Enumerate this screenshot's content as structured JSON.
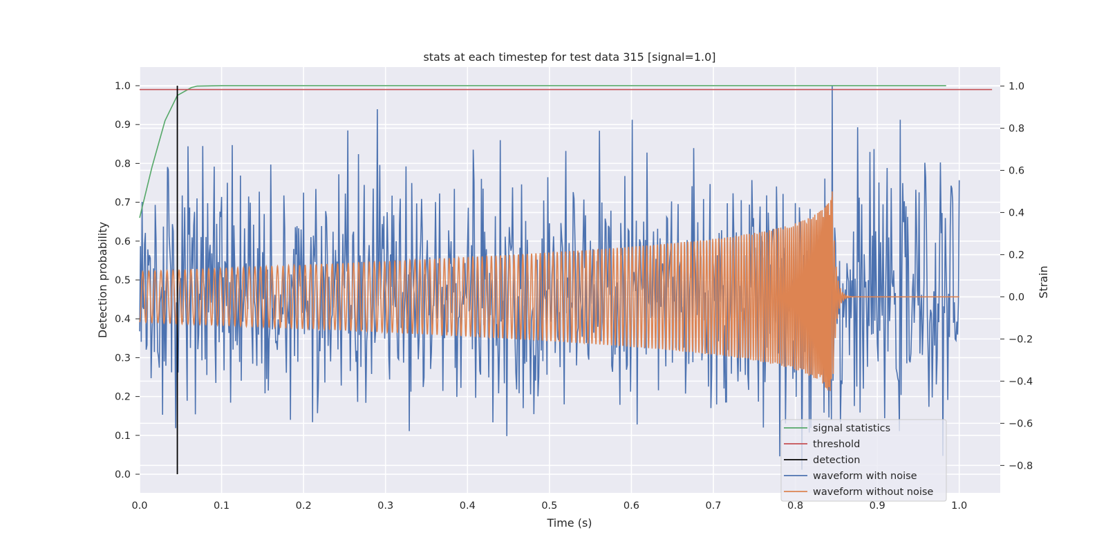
{
  "chart_data": {
    "type": "line",
    "title": "stats at each timestep for test data 315 [signal=1.0]",
    "xlabel": "Time (s)",
    "ylabel_left": "Detection probability",
    "ylabel_right": "Strain",
    "xlim": [
      0.0,
      1.05
    ],
    "ylim_left": [
      -0.048,
      1.048
    ],
    "ylim_right": [
      -0.93,
      1.09
    ],
    "x_ticks": [
      0.0,
      0.1,
      0.2,
      0.3,
      0.4,
      0.5,
      0.6,
      0.7,
      0.8,
      0.9,
      1.0
    ],
    "x_tick_labels": [
      "0.0",
      "0.1",
      "0.2",
      "0.3",
      "0.4",
      "0.5",
      "0.6",
      "0.7",
      "0.8",
      "0.9",
      "1.0"
    ],
    "y_ticks_left": [
      0.0,
      0.1,
      0.2,
      0.3,
      0.4,
      0.5,
      0.6,
      0.7,
      0.8,
      0.9,
      1.0
    ],
    "y_tick_labels_left": [
      "0.0",
      "0.1",
      "0.2",
      "0.3",
      "0.4",
      "0.5",
      "0.6",
      "0.7",
      "0.8",
      "0.9",
      "1.0"
    ],
    "y_ticks_right": [
      -0.8,
      -0.6,
      -0.4,
      -0.2,
      0.0,
      0.2,
      0.4,
      0.6,
      0.8,
      1.0
    ],
    "y_tick_labels_right": [
      "−0.8",
      "−0.6",
      "−0.4",
      "−0.2",
      "0.0",
      "0.2",
      "0.4",
      "0.6",
      "0.8",
      "1.0"
    ],
    "grid": true,
    "background": "#eaeaf2",
    "legend_position": "lower-right",
    "series": [
      {
        "name": "signal statistics",
        "axis": "left",
        "color": "#55a868",
        "x": [
          0.0,
          0.015,
          0.031,
          0.046,
          0.063,
          0.07,
          0.1,
          0.3,
          0.5,
          0.7,
          0.9,
          0.984
        ],
        "y": [
          0.66,
          0.79,
          0.91,
          0.975,
          0.995,
          0.999,
          1.0,
          1.0,
          1.0,
          1.0,
          1.0,
          1.0
        ]
      },
      {
        "name": "threshold",
        "axis": "left",
        "color": "#c44e52",
        "x": [
          0.0,
          1.04
        ],
        "y": [
          0.99,
          0.99
        ]
      },
      {
        "name": "detection",
        "axis": "left",
        "color": "#000000",
        "x": [
          0.046,
          0.046
        ],
        "y": [
          0.0,
          1.0
        ]
      },
      {
        "name": "waveform with noise",
        "axis": "right",
        "color": "#4c72b0",
        "x_range": [
          0.0,
          1.0
        ],
        "peaks": [
          [
            0.29,
            0.89
          ],
          [
            0.845,
            1.0
          ]
        ],
        "envelope": 0.3
      },
      {
        "name": "waveform without noise",
        "axis": "right",
        "color": "#dd8452",
        "x_range": [
          0.0,
          1.0
        ],
        "merger_time": 0.845,
        "peak_amplitude": 0.54
      }
    ]
  }
}
